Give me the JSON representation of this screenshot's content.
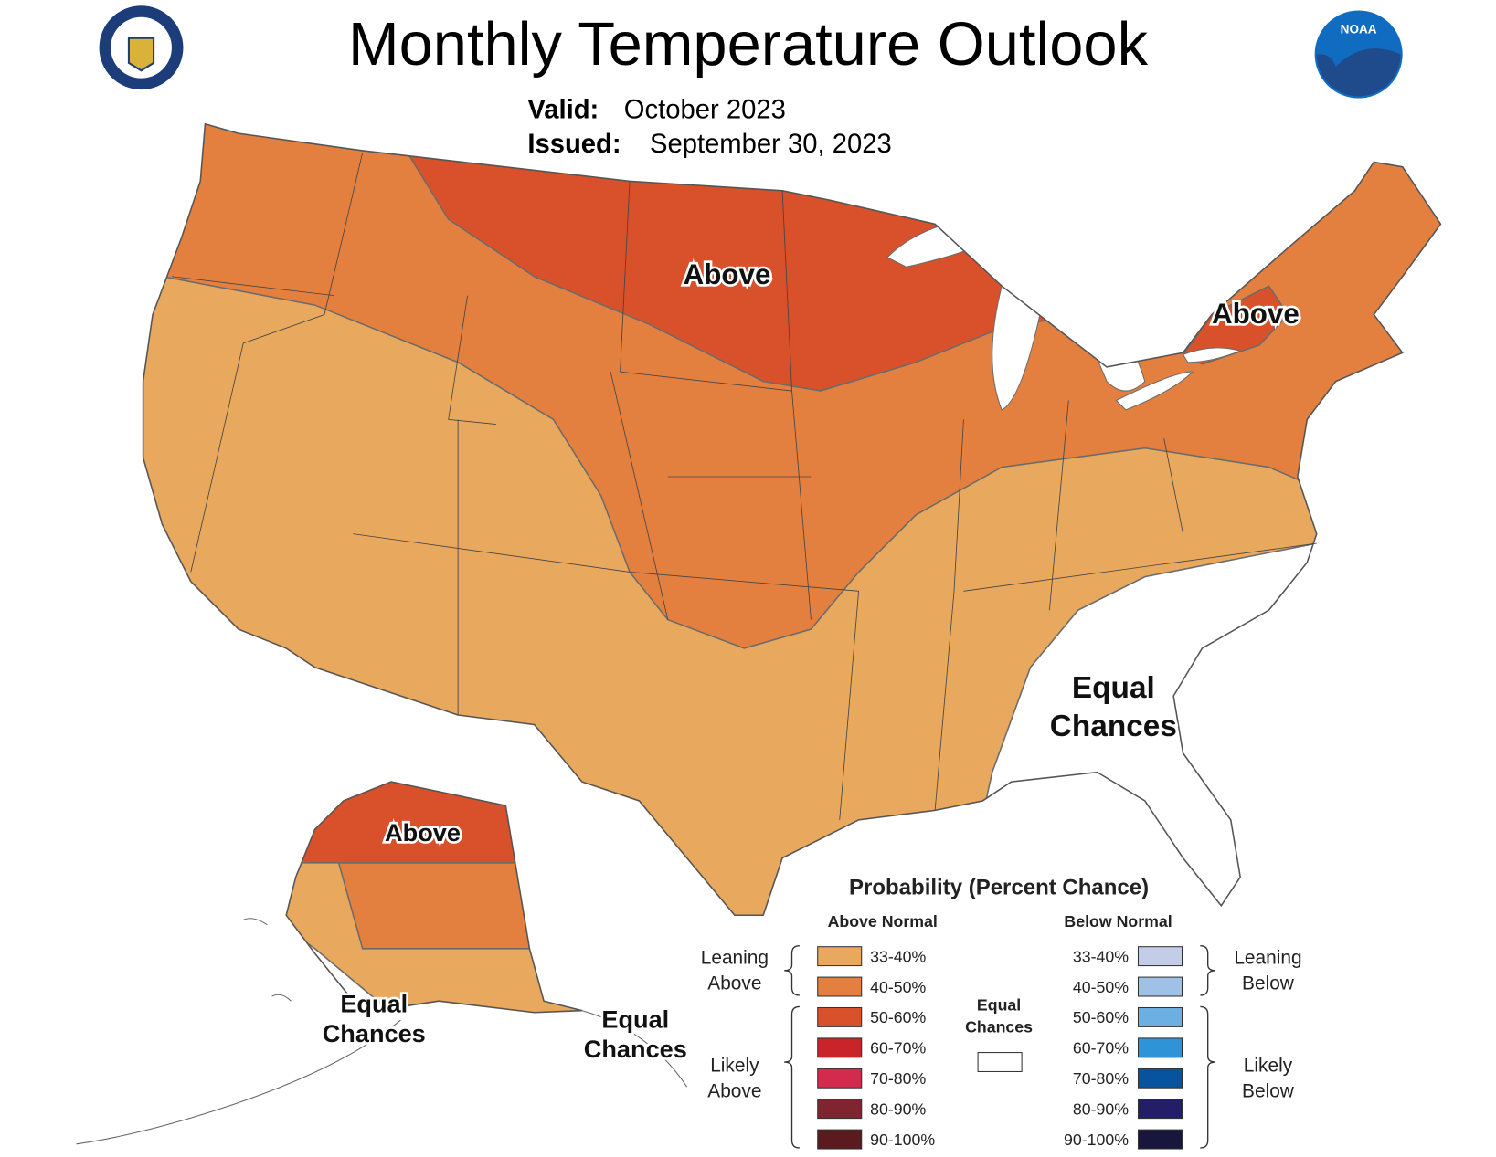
{
  "header": {
    "title": "Monthly Temperature Outlook",
    "valid_label": "Valid:",
    "valid_value": "October 2023",
    "issued_label": "Issued:",
    "issued_value": "September 30, 2023",
    "noaa_logo": "NOAA"
  },
  "map": {
    "labels": {
      "above_north": "Above",
      "above_northeast": "Above",
      "above_alaska": "Above",
      "equal_southeast": [
        "Equal",
        "Chances"
      ],
      "equal_alaska_west": [
        "Equal",
        "Chances"
      ],
      "equal_alaska_south": [
        "Equal",
        "Chances"
      ]
    }
  },
  "legend": {
    "title": "Probability (Percent Chance)",
    "above_header": "Above Normal",
    "below_header": "Below Normal",
    "above": [
      {
        "label": "33-40%",
        "color": "#e8a85e"
      },
      {
        "label": "40-50%",
        "color": "#e4803f"
      },
      {
        "label": "50-60%",
        "color": "#d9512b"
      },
      {
        "label": "60-70%",
        "color": "#c8242a"
      },
      {
        "label": "70-80%",
        "color": "#d32b4c"
      },
      {
        "label": "80-90%",
        "color": "#7e2530"
      },
      {
        "label": "90-100%",
        "color": "#5a1a1e"
      }
    ],
    "below": [
      {
        "label": "33-40%",
        "color": "#c3cde8"
      },
      {
        "label": "40-50%",
        "color": "#a0c1e6"
      },
      {
        "label": "50-60%",
        "color": "#6cb0e3"
      },
      {
        "label": "60-70%",
        "color": "#2f93d8"
      },
      {
        "label": "70-80%",
        "color": "#08539e"
      },
      {
        "label": "80-90%",
        "color": "#221e68"
      },
      {
        "label": "90-100%",
        "color": "#18163d"
      }
    ],
    "leaning_above": [
      "Leaning",
      "Above"
    ],
    "likely_above": [
      "Likely",
      "Above"
    ],
    "leaning_below": [
      "Leaning",
      "Below"
    ],
    "likely_below": [
      "Likely",
      "Below"
    ],
    "equal_chances": [
      "Equal",
      "Chances"
    ]
  }
}
